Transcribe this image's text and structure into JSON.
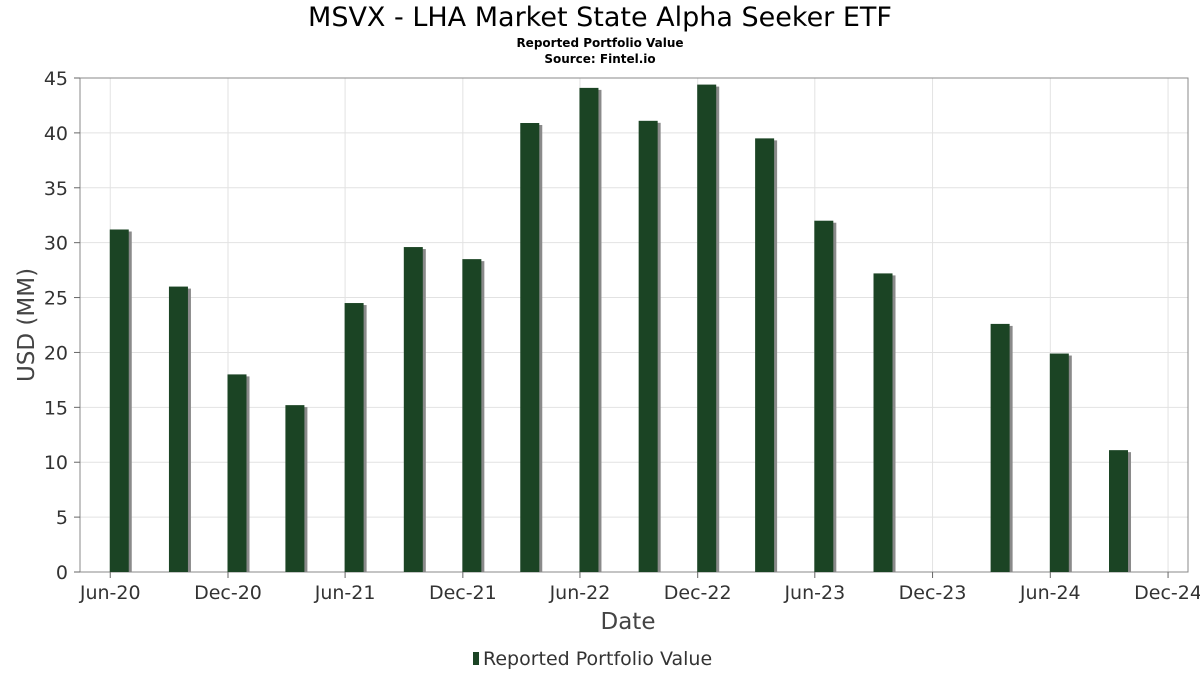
{
  "chart_data": {
    "type": "bar",
    "title": "MSVX - LHA Market State Alpha Seeker ETF",
    "subtitle": "Reported Portfolio Value",
    "source": "Source: Fintel.io",
    "xlabel": "Date",
    "ylabel": "USD (MM)",
    "ylim": [
      0,
      45
    ],
    "yticks": [
      0,
      5,
      10,
      15,
      20,
      25,
      30,
      35,
      40,
      45
    ],
    "xticks": [
      {
        "label": "Jun-20",
        "date": "2020-06-01"
      },
      {
        "label": "Dec-20",
        "date": "2020-12-01"
      },
      {
        "label": "Jun-21",
        "date": "2021-06-01"
      },
      {
        "label": "Dec-21",
        "date": "2021-12-01"
      },
      {
        "label": "Jun-22",
        "date": "2022-06-01"
      },
      {
        "label": "Dec-22",
        "date": "2022-12-01"
      },
      {
        "label": "Jun-23",
        "date": "2023-06-01"
      },
      {
        "label": "Dec-23",
        "date": "2023-12-01"
      },
      {
        "label": "Jun-24",
        "date": "2024-06-01"
      },
      {
        "label": "Dec-24",
        "date": "2024-12-01"
      }
    ],
    "x_range": [
      "2020-04-15",
      "2025-01-01"
    ],
    "grid": true,
    "legend_position": "bottom-center",
    "series": [
      {
        "name": "Reported Portfolio Value",
        "color": "#1b4424",
        "points": [
          {
            "date": "2020-06-15",
            "value": 31.2
          },
          {
            "date": "2020-09-15",
            "value": 26.0
          },
          {
            "date": "2020-12-15",
            "value": 18.0
          },
          {
            "date": "2021-03-15",
            "value": 15.2
          },
          {
            "date": "2021-06-15",
            "value": 24.5
          },
          {
            "date": "2021-09-15",
            "value": 29.6
          },
          {
            "date": "2021-12-15",
            "value": 28.5
          },
          {
            "date": "2022-03-15",
            "value": 40.9
          },
          {
            "date": "2022-06-15",
            "value": 44.1
          },
          {
            "date": "2022-09-15",
            "value": 41.1
          },
          {
            "date": "2022-12-15",
            "value": 44.4
          },
          {
            "date": "2023-03-15",
            "value": 39.5
          },
          {
            "date": "2023-06-15",
            "value": 32.0
          },
          {
            "date": "2023-09-15",
            "value": 27.2
          },
          {
            "date": "2024-03-15",
            "value": 22.6
          },
          {
            "date": "2024-06-15",
            "value": 19.9
          },
          {
            "date": "2024-09-15",
            "value": 11.1
          }
        ]
      }
    ]
  }
}
